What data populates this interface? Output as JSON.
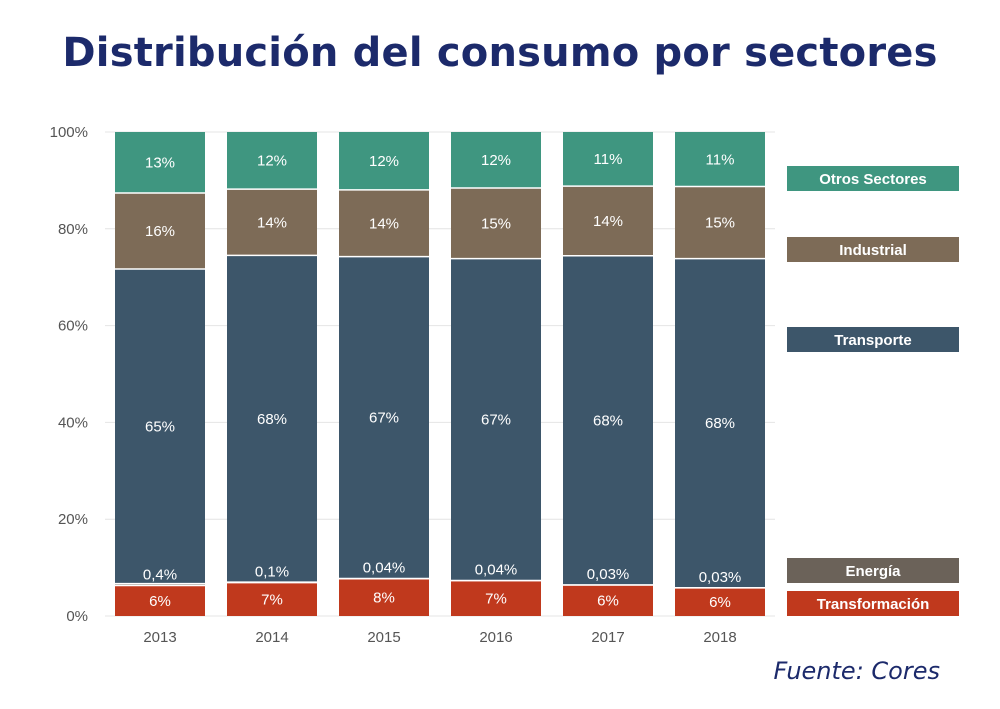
{
  "chart_data": {
    "type": "bar",
    "stacked": true,
    "title": "Distribución del consumo por sectores",
    "categories": [
      "2013",
      "2014",
      "2015",
      "2016",
      "2017",
      "2018"
    ],
    "series": [
      {
        "name": "Transformación",
        "color": "#c0391d",
        "values": [
          6.3,
          6.9,
          7.7,
          7.3,
          6.4,
          5.8
        ],
        "labels": [
          "6%",
          "7%",
          "8%",
          "7%",
          "6%",
          "6%"
        ]
      },
      {
        "name": "Energía",
        "color": "#6b6259",
        "values": [
          0.4,
          0.1,
          0.04,
          0.04,
          0.03,
          0.03
        ],
        "labels": [
          "0,4%",
          "0,1%",
          "0,04%",
          "0,04%",
          "0,03%",
          "0,03%"
        ]
      },
      {
        "name": "Transporte",
        "color": "#3d566a",
        "values": [
          65.0,
          67.5,
          66.5,
          66.5,
          68.0,
          68.0
        ],
        "labels": [
          "65%",
          "68%",
          "67%",
          "67%",
          "68%",
          "68%"
        ]
      },
      {
        "name": "Industrial",
        "color": "#7d6b57",
        "values": [
          15.7,
          13.7,
          13.8,
          14.6,
          14.4,
          14.9
        ],
        "labels": [
          "16%",
          "14%",
          "14%",
          "15%",
          "14%",
          "15%"
        ]
      },
      {
        "name": "Otros Sectores",
        "color": "#3f9680",
        "values": [
          12.6,
          11.8,
          11.96,
          11.56,
          11.17,
          11.27
        ],
        "labels": [
          "13%",
          "12%",
          "12%",
          "12%",
          "11%",
          "11%"
        ]
      }
    ],
    "y_ticks": [
      "0%",
      "20%",
      "40%",
      "60%",
      "80%",
      "100%"
    ],
    "ylim": [
      0,
      100
    ],
    "xlabel": "",
    "ylabel": "",
    "grid": true,
    "legend_position": "right",
    "legend_order": [
      "Otros Sectores",
      "Industrial",
      "Transporte",
      "Energía",
      "Transformación"
    ]
  },
  "source": "Fuente: Cores"
}
